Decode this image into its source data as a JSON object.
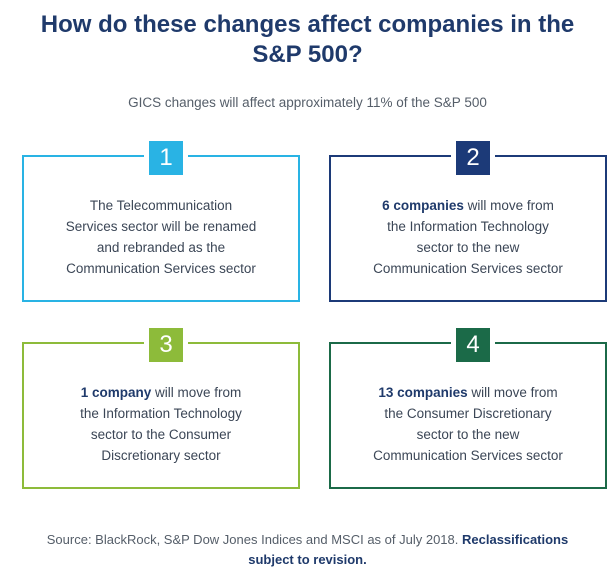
{
  "title": {
    "line1": "How do these changes affect companies in the",
    "line2": "S&P 500?"
  },
  "subtitle": "GICS changes will affect approximately 11% of the S&P 500",
  "cards": [
    {
      "number": "1",
      "bold": "",
      "lines": [
        "The Telecommunication",
        "Services sector will be renamed",
        "and rebranded as the",
        "Communication Services sector"
      ],
      "first_rest": "",
      "color": "#29b3e4"
    },
    {
      "number": "2",
      "bold": "6 companies",
      "first_rest": " will move from",
      "lines": [
        "",
        "the Information Technology",
        "sector to the new",
        "Communication Services sector"
      ],
      "color": "#1c3a78"
    },
    {
      "number": "3",
      "bold": "1 company",
      "first_rest": " will move from",
      "lines": [
        "",
        "the Information Technology",
        "sector to the Consumer",
        "Discretionary sector"
      ],
      "color": "#8dbb3a"
    },
    {
      "number": "4",
      "bold": "13 companies",
      "first_rest": " will move from",
      "lines": [
        "",
        "the Consumer Discretionary",
        "sector to the new",
        "Communication Services sector"
      ],
      "color": "#1b6a48"
    }
  ],
  "source": {
    "text": "Source: BlackRock, S&P Dow Jones Indices and MSCI as of July 2018.",
    "bold_part1": "Reclassifications",
    "bold_part2": "subject to revision."
  }
}
